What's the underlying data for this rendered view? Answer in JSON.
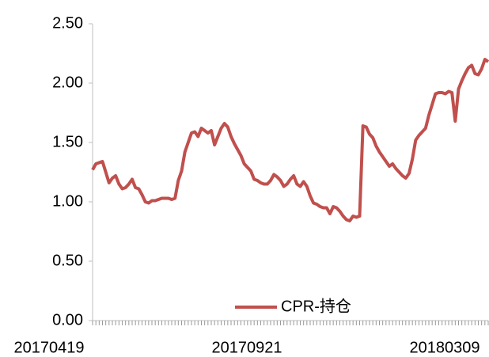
{
  "chart_data": {
    "type": "line",
    "categories": [
      "20170419",
      null,
      null,
      null,
      null,
      null,
      null,
      null,
      null,
      null,
      null,
      null,
      null,
      null,
      null,
      null,
      null,
      null,
      null,
      null,
      null,
      null,
      null,
      null,
      null,
      null,
      null,
      null,
      null,
      null,
      null,
      null,
      null,
      null,
      null,
      null,
      null,
      null,
      null,
      null,
      null,
      null,
      null,
      null,
      null,
      null,
      null,
      null,
      null,
      null,
      null,
      null,
      null,
      null,
      null,
      null,
      null,
      null,
      null,
      null,
      "20170921",
      null,
      null,
      null,
      null,
      null,
      null,
      null,
      null,
      null,
      null,
      null,
      null,
      null,
      null,
      null,
      null,
      null,
      null,
      null,
      null,
      null,
      null,
      null,
      null,
      null,
      null,
      null,
      null,
      null,
      null,
      null,
      null,
      null,
      null,
      null,
      null,
      null,
      null,
      null,
      null,
      null,
      null,
      null,
      null,
      null,
      null,
      null,
      null,
      null,
      null,
      null,
      null,
      null,
      null,
      null,
      null,
      null,
      null,
      null,
      "20180309"
    ],
    "series": [
      {
        "name": "CPR-持仓",
        "color": "#c0504d",
        "values": [
          1.27,
          1.32,
          1.33,
          1.34,
          1.25,
          1.16,
          1.2,
          1.22,
          1.15,
          1.11,
          1.12,
          1.15,
          1.19,
          1.12,
          1.11,
          1.06,
          1.0,
          0.99,
          1.01,
          1.01,
          1.02,
          1.03,
          1.03,
          1.03,
          1.02,
          1.03,
          1.18,
          1.26,
          1.42,
          1.5,
          1.58,
          1.59,
          1.55,
          1.62,
          1.6,
          1.58,
          1.6,
          1.48,
          1.55,
          1.62,
          1.66,
          1.63,
          1.55,
          1.49,
          1.44,
          1.39,
          1.32,
          1.29,
          1.26,
          1.19,
          1.18,
          1.16,
          1.15,
          1.15,
          1.18,
          1.23,
          1.21,
          1.18,
          1.13,
          1.15,
          1.19,
          1.22,
          1.15,
          1.13,
          1.17,
          1.13,
          1.05,
          0.99,
          0.98,
          0.96,
          0.95,
          0.95,
          0.9,
          0.96,
          0.95,
          0.92,
          0.88,
          0.85,
          0.84,
          0.88,
          0.87,
          0.88,
          1.64,
          1.63,
          1.57,
          1.54,
          1.47,
          1.42,
          1.38,
          1.34,
          1.3,
          1.32,
          1.28,
          1.25,
          1.22,
          1.2,
          1.24,
          1.36,
          1.52,
          1.56,
          1.59,
          1.62,
          1.73,
          1.82,
          1.91,
          1.92,
          1.92,
          1.91,
          1.93,
          1.92,
          1.68,
          1.95,
          2.02,
          2.08,
          2.13,
          2.15,
          2.08,
          2.07,
          2.12,
          2.2,
          2.18
        ]
      }
    ],
    "ylim": [
      0,
      2.5
    ],
    "yticks": [
      {
        "value": 0,
        "label": "0.00"
      },
      {
        "value": 0.5,
        "label": "0.50"
      },
      {
        "value": 1,
        "label": "1.00"
      },
      {
        "value": 1.5,
        "label": "1.50"
      },
      {
        "value": 2,
        "label": "2.00"
      },
      {
        "value": 2.5,
        "label": "2.50"
      }
    ],
    "legend": "bottom"
  }
}
